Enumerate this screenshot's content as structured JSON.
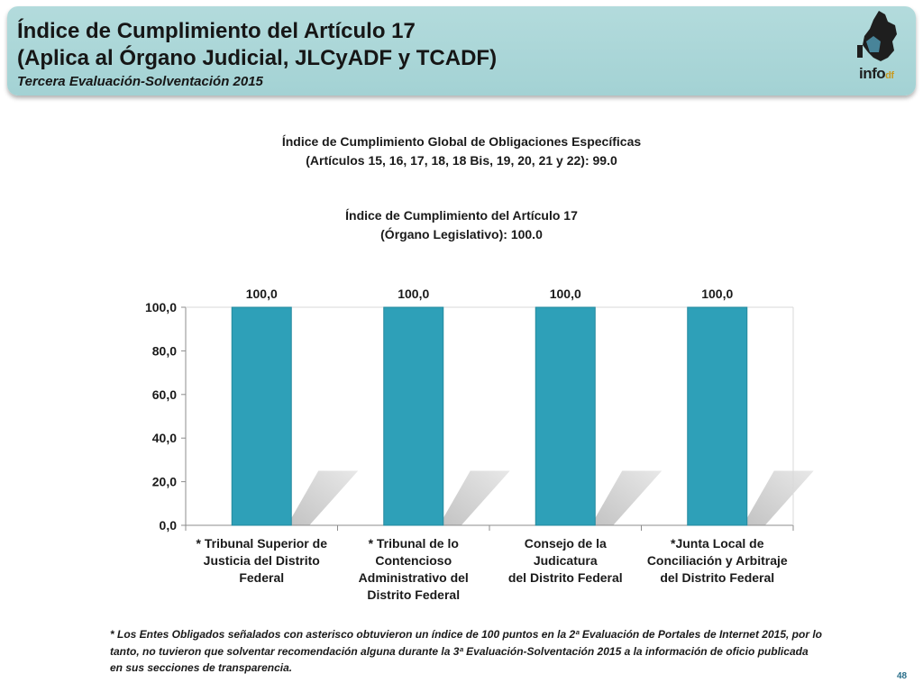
{
  "header": {
    "title_line1": "Índice de Cumplimiento del Artículo 17",
    "title_line2": "(Aplica al Órgano Judicial, JLCyADF y TCADF)",
    "subtitle": "Tercera Evaluación-Solventación 2015",
    "logo": {
      "text": "info",
      "badge": "df",
      "icon": "cdmx-map-logo-icon",
      "colors": {
        "map": "#1e1e1e",
        "badge": "#c89a22"
      }
    }
  },
  "summary": {
    "global_line1": "Índice de Cumplimiento Global de Obligaciones Específicas",
    "global_line2": "(Artículos 15, 16, 17, 18, 18 Bis, 19, 20, 21 y 22): 99.0",
    "article_line1": "Índice de Cumplimiento del Artículo 17",
    "article_line2": "(Órgano Legislativo): 100.0"
  },
  "chart_data": {
    "type": "bar",
    "categories": [
      "* Tribunal Superior de Justicia del Distrito Federal",
      "* Tribunal de lo Contencioso Administrativo del Distrito Federal",
      "Consejo de la Judicatura del Distrito Federal",
      "*Junta Local de Conciliación y Arbitraje del Distrito Federal"
    ],
    "category_lines": [
      [
        "* Tribunal Superior de",
        "Justicia del Distrito",
        "Federal"
      ],
      [
        "* Tribunal de lo",
        "Contencioso",
        "Administrativo del",
        "Distrito Federal"
      ],
      [
        "Consejo de la Judicatura",
        "del Distrito Federal"
      ],
      [
        "*Junta Local de",
        "Conciliación y Arbitraje",
        "del Distrito Federal"
      ]
    ],
    "values": [
      100.0,
      100.0,
      100.0,
      100.0
    ],
    "data_labels": [
      "100,0",
      "100,0",
      "100,0",
      "100,0"
    ],
    "ylim": [
      0,
      100
    ],
    "y_ticks": [
      0,
      20,
      40,
      60,
      80,
      100
    ],
    "y_tick_labels": [
      "0,0",
      "20,0",
      "40,0",
      "60,0",
      "80,0",
      "100,0"
    ],
    "title": "",
    "xlabel": "",
    "ylabel": "",
    "grid": false,
    "legend": "none",
    "colors": {
      "bar": "#2ea0b8",
      "bar_edge": "#23899e",
      "shadow": "#bdbdbd"
    }
  },
  "footnote": "* Los Entes Obligados señalados con asterisco obtuvieron un índice de 100 puntos en la 2ª Evaluación de Portales de Internet 2015, por lo tanto, no tuvieron que solventar recomendación alguna durante la 3ª Evaluación-Solventación 2015 a la información de oficio publicada en sus secciones de transparencia.",
  "page_number": "48"
}
